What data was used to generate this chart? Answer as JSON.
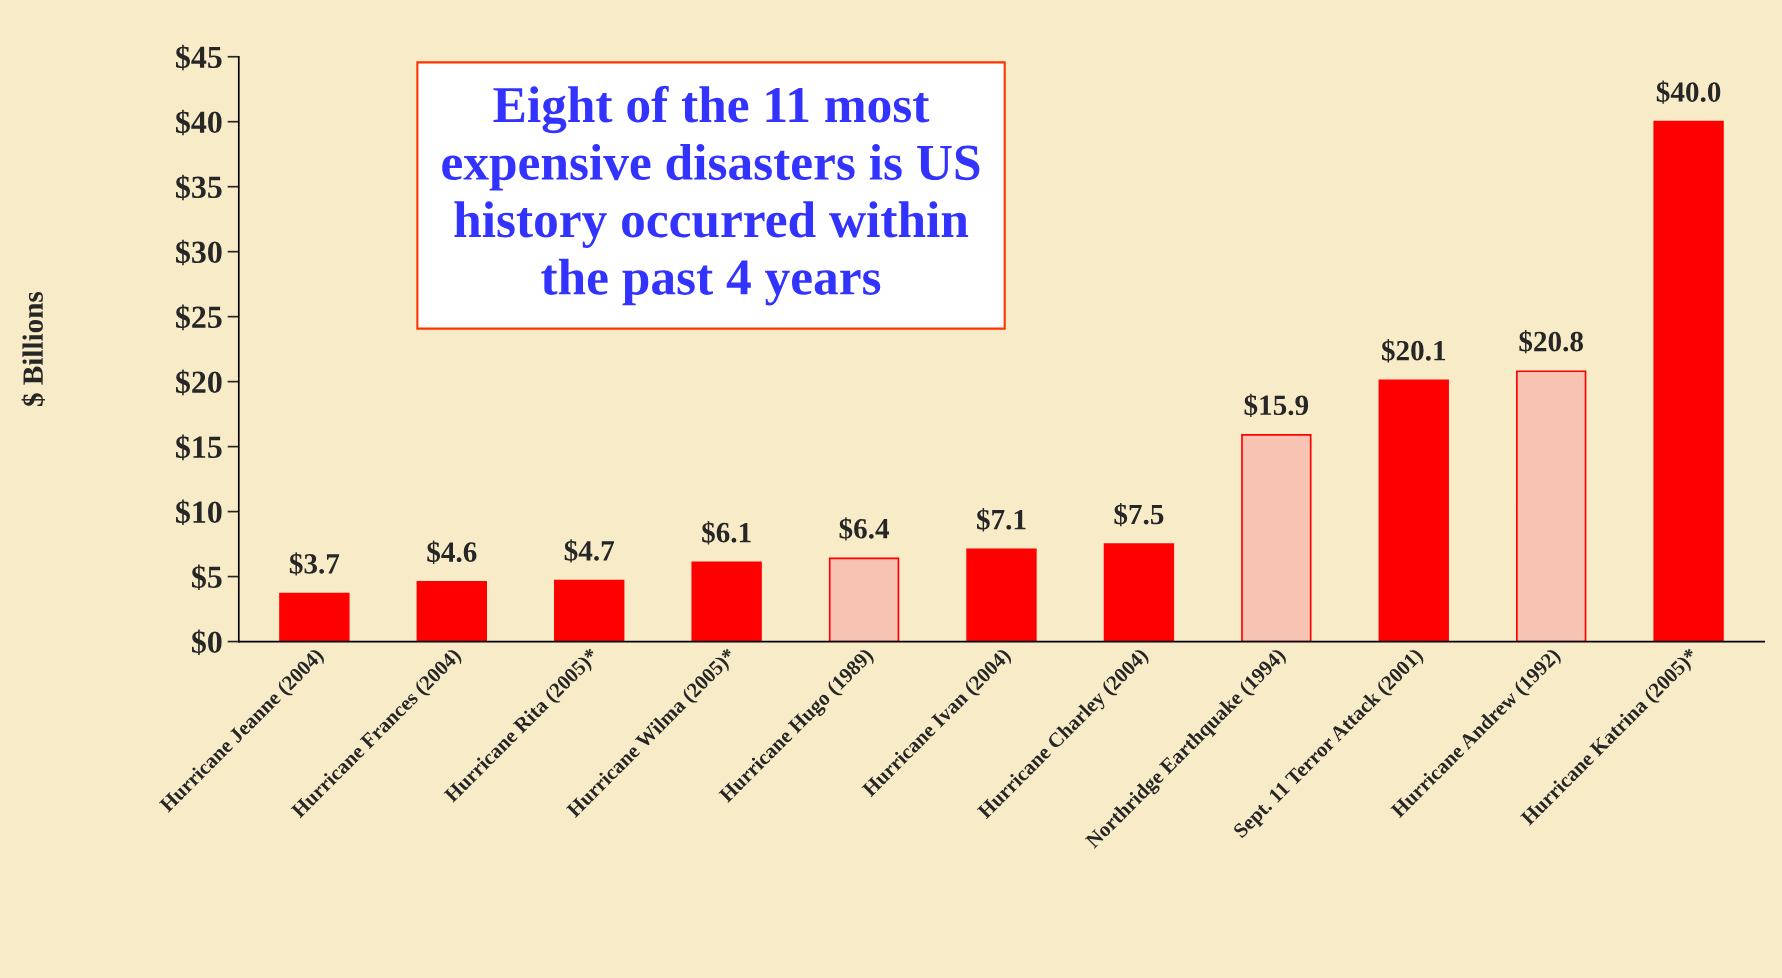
{
  "chart_data": {
    "type": "bar",
    "title": "Eight of the 11 most\nexpensive disasters is US\nhistory occurred within\nthe past 4 years",
    "ylabel": "$ Billions",
    "categories": [
      "Hurricane Jeanne (2004)",
      "Hurricane Frances (2004)",
      "Hurricane Rita (2005)*",
      "Hurricane Wilma (2005)*",
      "Hurricane Hugo (1989)",
      "Hurricane Ivan (2004)",
      "Hurricane Charley (2004)",
      "Northridge Earthquake (1994)",
      "Sept. 11 Terror Attack (2001)",
      "Hurricane Andrew (1992)",
      "Hurricane Katrina (2005)*"
    ],
    "values": [
      3.7,
      4.6,
      4.7,
      6.1,
      6.4,
      7.1,
      7.5,
      15.9,
      20.1,
      20.8,
      40.0
    ],
    "colors": [
      "#ff0000",
      "#ff0000",
      "#ff0000",
      "#ff0000",
      "#f7c4b4",
      "#ff0000",
      "#ff0000",
      "#f7c4b4",
      "#ff0000",
      "#f7c4b4",
      "#ff0000"
    ],
    "value_labels": [
      "$3.7",
      "$4.6",
      "$4.7",
      "$6.1",
      "$6.4",
      "$7.1",
      "$7.5",
      "$15.9",
      "$20.1",
      "$20.8",
      "$40.0"
    ],
    "ylim": [
      0,
      45
    ],
    "yticks": [
      {
        "value": 0,
        "label": "$0"
      },
      {
        "value": 5,
        "label": "$5"
      },
      {
        "value": 10,
        "label": "$10"
      },
      {
        "value": 15,
        "label": "$15"
      },
      {
        "value": 20,
        "label": "$20"
      },
      {
        "value": 25,
        "label": "$25"
      },
      {
        "value": 30,
        "label": "$30"
      },
      {
        "value": 35,
        "label": "$35"
      },
      {
        "value": 40,
        "label": "$40"
      },
      {
        "value": 45,
        "label": "$45"
      }
    ],
    "grid": false,
    "legend": false
  }
}
